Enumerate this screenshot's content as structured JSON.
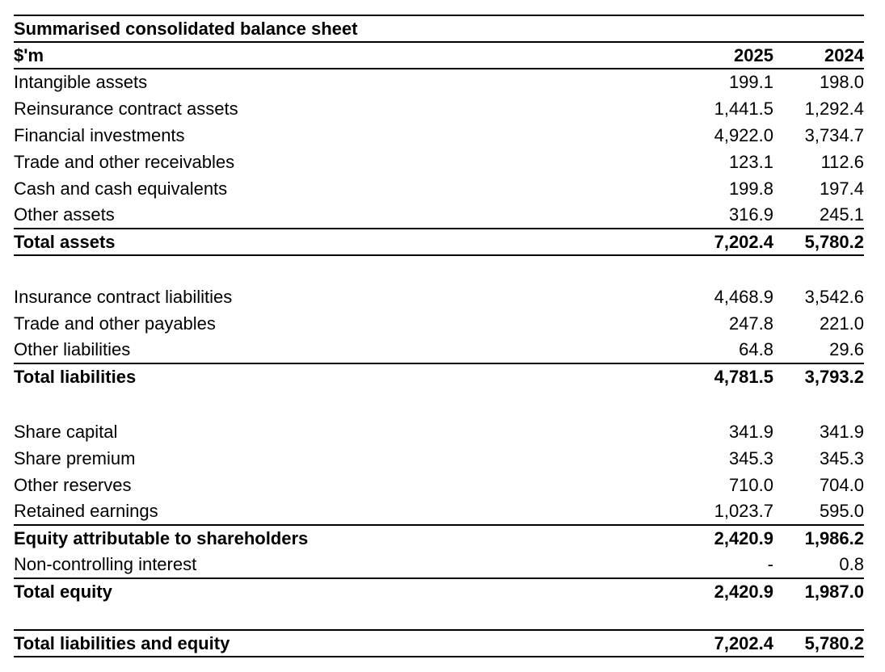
{
  "page": {
    "background": "#ffffff",
    "text_color": "#000000",
    "rule_color": "#000000"
  },
  "table": {
    "title": "Summarised consolidated balance sheet",
    "unit_label": "$'m",
    "columns": [
      "2025",
      "2024"
    ],
    "rows": [
      {
        "label": "Intangible assets",
        "v2025": "199.1",
        "v2024": "198.0"
      },
      {
        "label": "Reinsurance contract assets",
        "v2025": "1,441.5",
        "v2024": "1,292.4"
      },
      {
        "label": "Financial investments",
        "v2025": "4,922.0",
        "v2024": "3,734.7"
      },
      {
        "label": "Trade and other receivables",
        "v2025": "123.1",
        "v2024": "112.6"
      },
      {
        "label": "Cash and cash equivalents",
        "v2025": "199.8",
        "v2024": "197.4"
      },
      {
        "label": "Other assets",
        "v2025": "316.9",
        "v2024": "245.1"
      },
      {
        "label": "Total assets",
        "v2025": "7,202.4",
        "v2024": "5,780.2",
        "bold": true,
        "border_top": true,
        "border_bottom": true
      },
      {
        "spacer": true
      },
      {
        "label": "Insurance contract liabilities",
        "v2025": "4,468.9",
        "v2024": "3,542.6"
      },
      {
        "label": "Trade and other payables",
        "v2025": "247.8",
        "v2024": "221.0"
      },
      {
        "label": "Other liabilities",
        "v2025": "64.8",
        "v2024": "29.6"
      },
      {
        "label": "Total liabilities",
        "v2025": "4,781.5",
        "v2024": "3,793.2",
        "bold": true,
        "border_top": true
      },
      {
        "spacer": true
      },
      {
        "label": "Share capital",
        "v2025": "341.9",
        "v2024": "341.9"
      },
      {
        "label": "Share premium",
        "v2025": "345.3",
        "v2024": "345.3"
      },
      {
        "label": "Other reserves",
        "v2025": "710.0",
        "v2024": "704.0"
      },
      {
        "label": "Retained earnings",
        "v2025": "1,023.7",
        "v2024": "595.0"
      },
      {
        "label": "Equity attributable to shareholders",
        "v2025": "2,420.9",
        "v2024": "1,986.2",
        "bold": true,
        "border_top": true
      },
      {
        "label": "Non-controlling interest",
        "v2025": "-",
        "v2024": "0.8"
      },
      {
        "label": "Total equity",
        "v2025": "2,420.9",
        "v2024": "1,987.0",
        "bold": true,
        "border_top": true
      },
      {
        "spacer": true,
        "small": true
      },
      {
        "label": "Total liabilities and equity",
        "v2025": "7,202.4",
        "v2024": "5,780.2",
        "bold": true,
        "border_top": true,
        "border_bottom": true
      }
    ]
  }
}
